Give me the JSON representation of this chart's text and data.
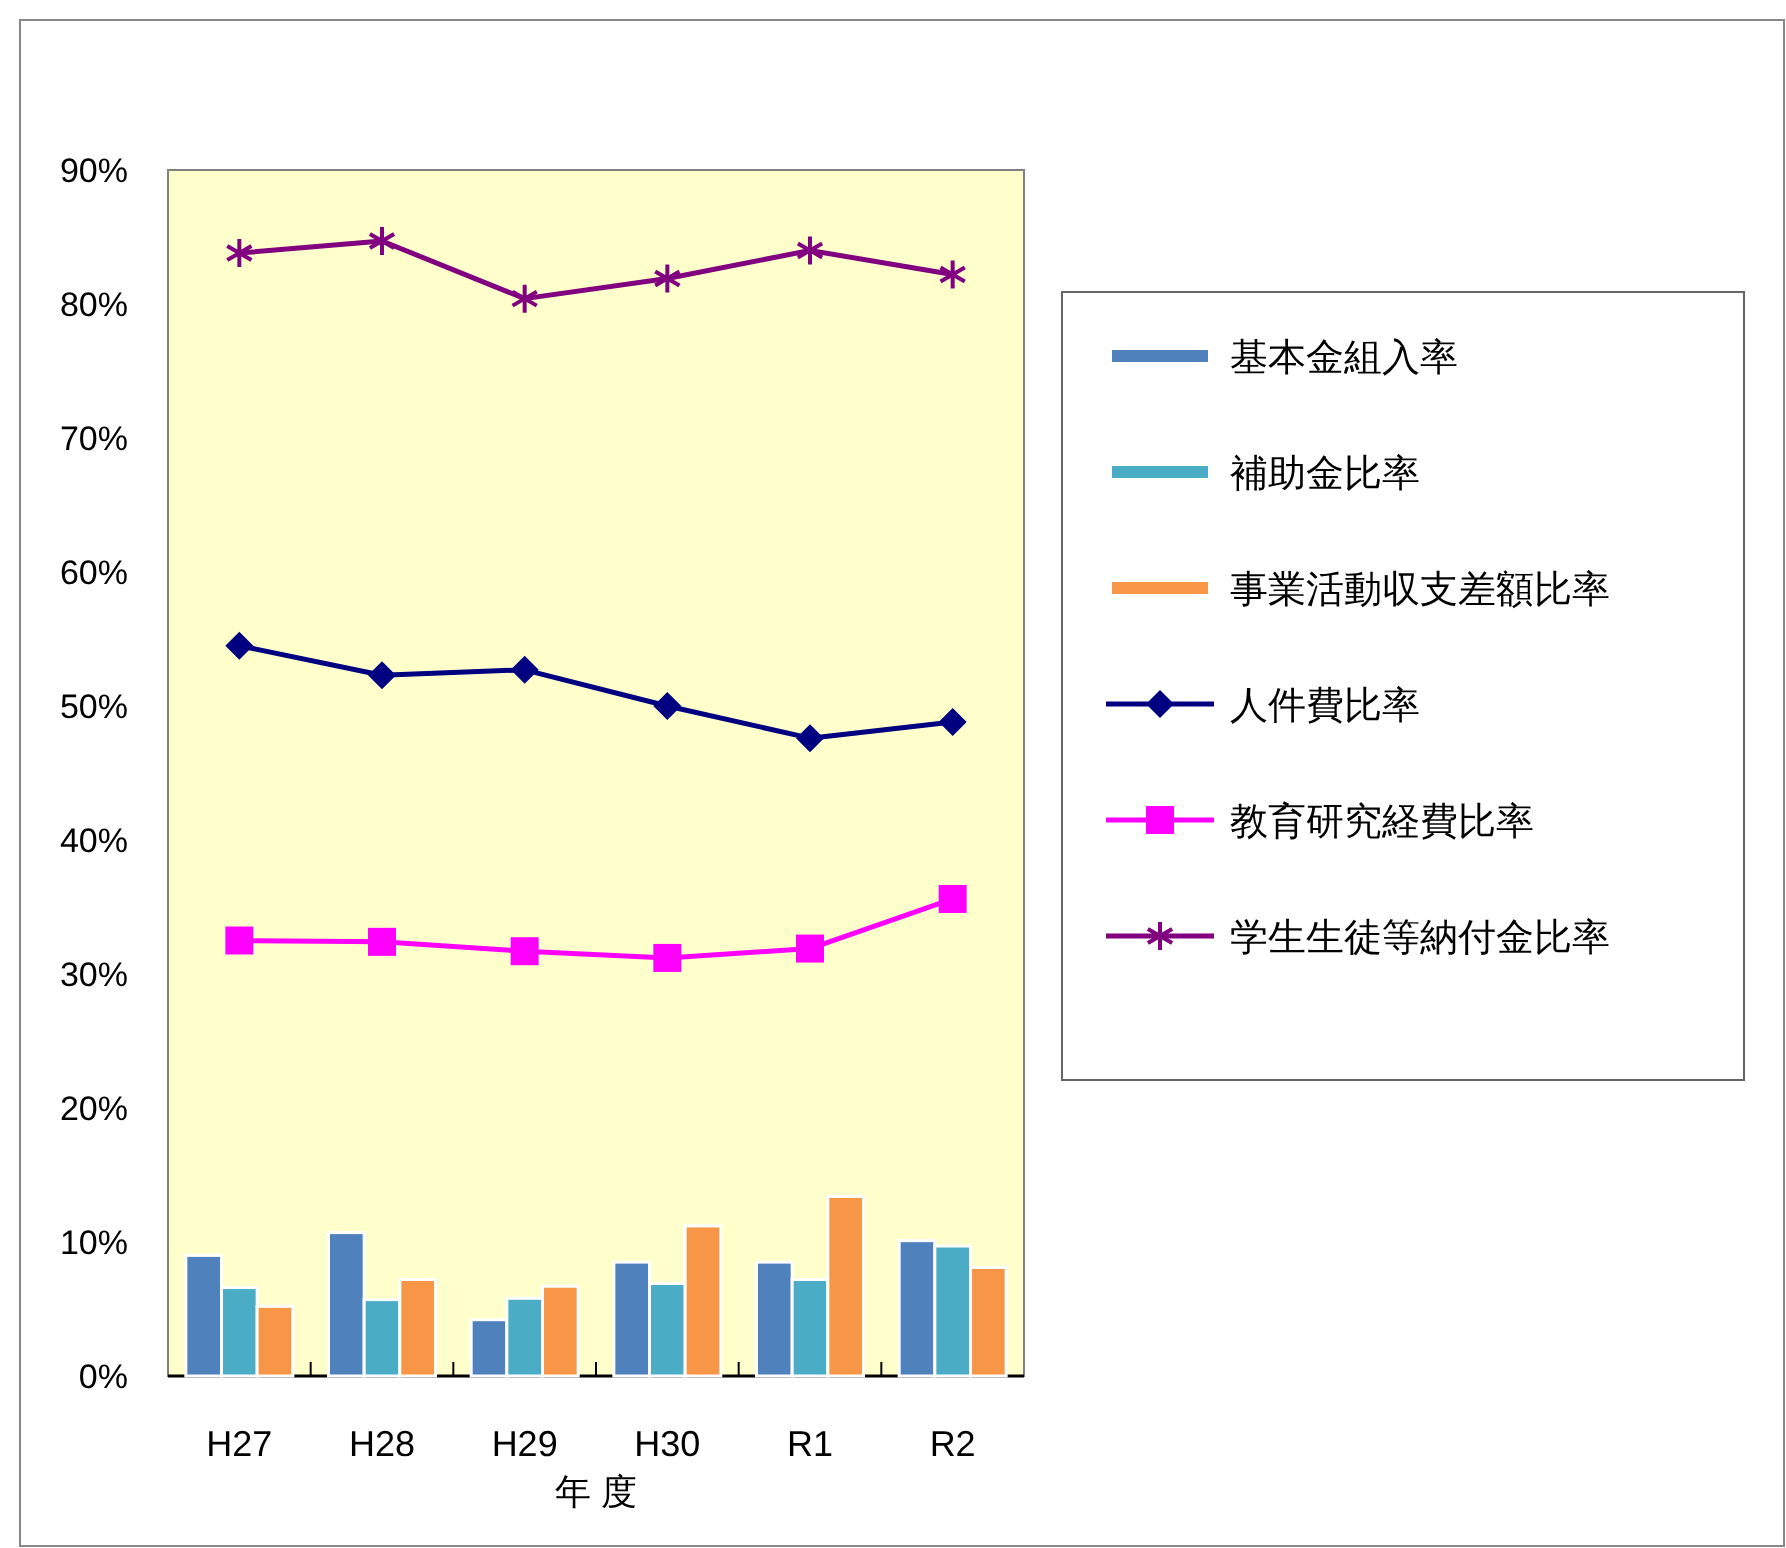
{
  "chart_data": {
    "type": "bar",
    "xlabel": "年 度",
    "categories": [
      "H27",
      "H28",
      "H29",
      "H30",
      "R1",
      "R2"
    ],
    "series": [
      {
        "name": "基本金組入率",
        "color": "#4f81bd",
        "values": [
          9.0,
          10.7,
          4.2,
          8.5,
          8.5,
          10.1
        ]
      },
      {
        "name": "補助金比率",
        "color": "#4bacc6",
        "values": [
          6.6,
          5.7,
          5.8,
          6.9,
          7.2,
          9.7
        ]
      },
      {
        "name": "事業活動収支差額比率",
        "color": "#f79646",
        "values": [
          5.2,
          7.2,
          6.7,
          11.2,
          13.4,
          8.1
        ]
      },
      {
        "name": "人件費比率",
        "type": "line",
        "marker": "diamond",
        "color": "#000080",
        "values": [
          54.5,
          52.3,
          52.7,
          50.0,
          47.6,
          48.8
        ]
      },
      {
        "name": "教育研究経費比率",
        "type": "line",
        "marker": "square",
        "color": "#ff00ff",
        "values": [
          32.5,
          32.4,
          31.7,
          31.2,
          31.9,
          35.6
        ]
      },
      {
        "name": "学生生徒等納付金比率",
        "type": "line",
        "marker": "cross",
        "color": "#800080",
        "values": [
          83.8,
          84.7,
          80.4,
          81.9,
          84.0,
          82.2
        ]
      }
    ],
    "ylim": [
      0,
      90
    ],
    "yticks": [
      {
        "value": 0,
        "label": "0%"
      },
      {
        "value": 10,
        "label": "10%"
      },
      {
        "value": 20,
        "label": "20%"
      },
      {
        "value": 30,
        "label": "30%"
      },
      {
        "value": 40,
        "label": "40%"
      },
      {
        "value": 50,
        "label": "50%"
      },
      {
        "value": 60,
        "label": "60%"
      },
      {
        "value": 70,
        "label": "70%"
      },
      {
        "value": 80,
        "label": "80%"
      },
      {
        "value": 90,
        "label": "90%"
      }
    ],
    "grid": false,
    "legend": "right"
  }
}
